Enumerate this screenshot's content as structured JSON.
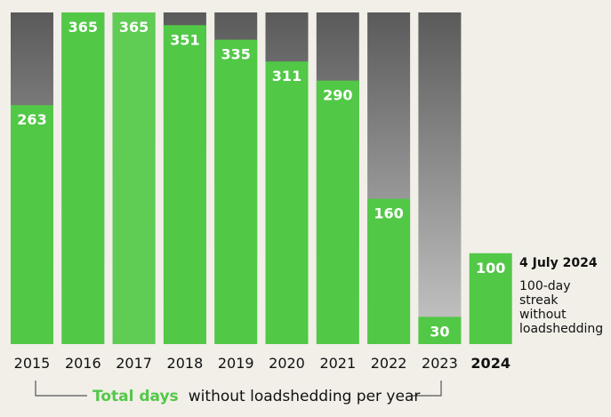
{
  "chart_data": {
    "type": "bar",
    "categories": [
      "2015",
      "2016",
      "2017",
      "2018",
      "2019",
      "2020",
      "2021",
      "2022",
      "2023",
      "2024"
    ],
    "values": [
      263,
      365,
      365,
      351,
      335,
      311,
      290,
      160,
      30,
      100
    ],
    "value_labels": [
      "263",
      "365",
      "365",
      "351",
      "335",
      "311",
      "290",
      "160",
      "30",
      "100"
    ],
    "background_total": 365,
    "ylim": [
      0,
      365
    ],
    "highlight_category": "2024",
    "colors": {
      "bar": "#52c847",
      "bar_highlight_2017": "#5fcc54",
      "remainder_top": "#5a5a5a",
      "remainder_bottom": "#c8c8c8",
      "background": "#f1efe8"
    },
    "annotation": {
      "date": "4 July 2024",
      "lines": [
        "100-day",
        "streak",
        "without",
        "loadshedding"
      ]
    },
    "caption": {
      "highlight": "Total days",
      "rest": "without loadshedding per year"
    }
  }
}
